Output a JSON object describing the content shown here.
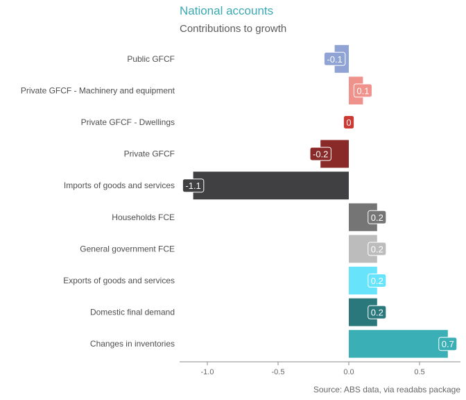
{
  "chart_data": {
    "type": "bar",
    "orientation": "horizontal",
    "title": "National accounts",
    "subtitle": "Contributions to growth",
    "caption": "Source: ABS data, via readabs package",
    "xlabel": "",
    "ylabel": "",
    "xlim": [
      -1.2,
      0.78
    ],
    "xticks": [
      -1.0,
      -0.5,
      0.0,
      0.5
    ],
    "xtick_labels": [
      "-1.0",
      "-0.5",
      "0.0",
      "0.5"
    ],
    "grid": false,
    "legend": "none",
    "categories": [
      "Public GFCF",
      "Private GFCF - Machinery and equipment",
      "Private GFCF - Dwellings",
      "Private GFCF",
      "Imports of goods and services",
      "Households FCE",
      "General government FCE",
      "Exports of goods and services",
      "Domestic final demand",
      "Changes in inventories"
    ],
    "values": [
      -0.1,
      0.1,
      0.0,
      -0.2,
      -1.1,
      0.2,
      0.2,
      0.2,
      0.2,
      0.7
    ],
    "data_labels": [
      "-0.1",
      "0.1",
      "0",
      "-0.2",
      "-1.1",
      "0.2",
      "0.2",
      "0.2",
      "0.2",
      "0.7"
    ],
    "colors": [
      "#8fa4d4",
      "#f0928c",
      "#cc3a35",
      "#8a2a28",
      "#404042",
      "#757575",
      "#bcbcbc",
      "#67e4fc",
      "#2a787c",
      "#3aafb5"
    ]
  }
}
